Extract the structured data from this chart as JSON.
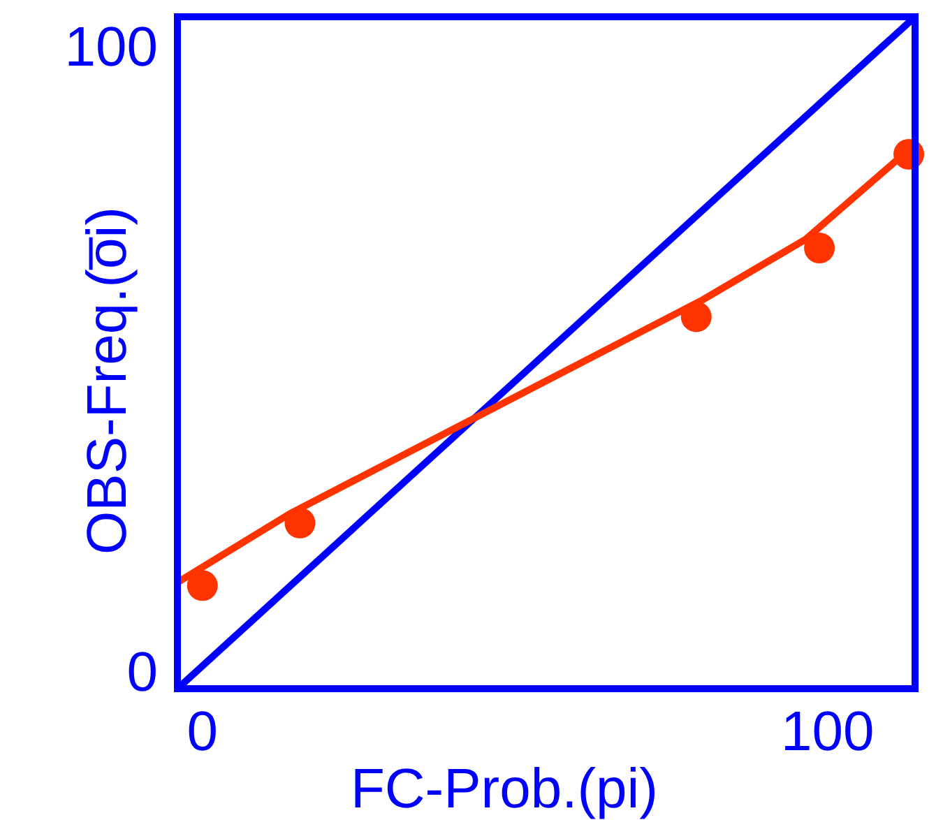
{
  "chart_data": {
    "type": "scatter",
    "xlabel": "FC-Prob.(pi)",
    "ylabel": "OBS-Freq.(o̅i)",
    "xlim": [
      -4,
      114
    ],
    "ylim": [
      -2.5,
      105
    ],
    "xticks": [
      0,
      100
    ],
    "yticks": [
      0,
      100
    ],
    "grid": false,
    "marker": "circle",
    "series": [
      {
        "type": "line",
        "marker": "none",
        "color": "#0000ff",
        "x": [
          -4,
          114
        ],
        "values": [
          -2.5,
          105
        ]
      },
      {
        "type": "line",
        "marker": "none",
        "color": "#ff3300",
        "x": [
          -4,
          14,
          80,
          96.5,
          114
        ],
        "values": [
          14.5,
          25.5,
          59.7,
          69.4,
          84.6
        ]
      },
      {
        "color": "#ff3300",
        "x": [
          0,
          15.6,
          79,
          98.7,
          113
        ],
        "values": [
          14,
          24,
          57,
          68,
          83
        ]
      }
    ]
  }
}
